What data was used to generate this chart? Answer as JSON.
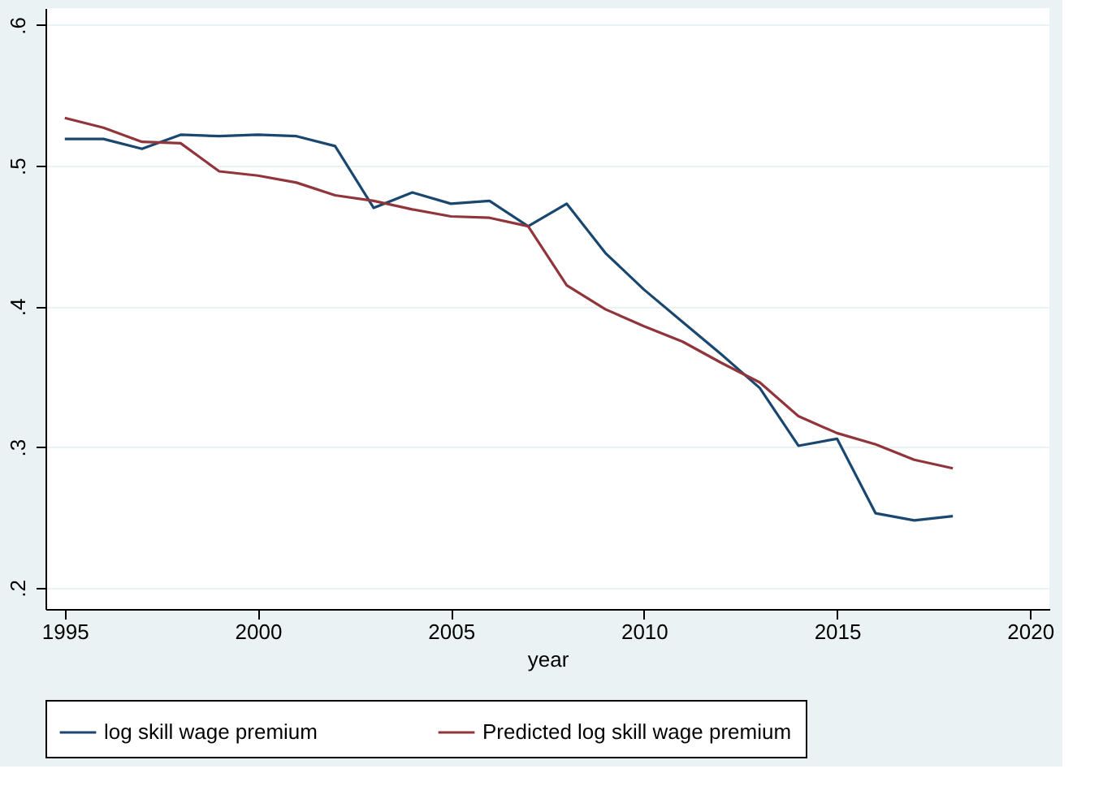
{
  "chart_data": {
    "type": "line",
    "xlabel": "year",
    "x": [
      1995,
      1996,
      1997,
      1998,
      1999,
      2000,
      2001,
      2002,
      2003,
      2004,
      2005,
      2006,
      2007,
      2008,
      2009,
      2010,
      2011,
      2012,
      2013,
      2014,
      2015,
      2016,
      2017,
      2018
    ],
    "series": [
      {
        "name": "log skill wage premium",
        "color": "#1a476f",
        "values": [
          0.519,
          0.519,
          0.512,
          0.522,
          0.521,
          0.522,
          0.521,
          0.514,
          0.47,
          0.481,
          0.473,
          0.475,
          0.457,
          0.473,
          0.438,
          0.412,
          0.389,
          0.366,
          0.342,
          0.301,
          0.306,
          0.253,
          0.248,
          0.251
        ]
      },
      {
        "name": "Predicted log skill wage premium",
        "color": "#90353b",
        "values": [
          0.534,
          0.527,
          0.517,
          0.516,
          0.496,
          0.493,
          0.488,
          0.479,
          0.475,
          0.469,
          0.464,
          0.463,
          0.457,
          0.415,
          0.398,
          0.386,
          0.375,
          0.36,
          0.346,
          0.322,
          0.31,
          0.302,
          0.291,
          0.285
        ]
      }
    ],
    "xlim": [
      1994.5,
      2020.5
    ],
    "xticks": [
      1995,
      2000,
      2005,
      2010,
      2015,
      2020
    ],
    "ylim": [
      0.185,
      0.612
    ],
    "yticks": [
      {
        "value": 0.2,
        "label": ".2"
      },
      {
        "value": 0.3,
        "label": ".3"
      },
      {
        "value": 0.4,
        "label": ".4"
      },
      {
        "value": 0.5,
        "label": ".5"
      },
      {
        "value": 0.6,
        "label": ".6"
      }
    ],
    "grid": "y",
    "legend": "bottom",
    "marker": "none",
    "line_style": "solid"
  }
}
